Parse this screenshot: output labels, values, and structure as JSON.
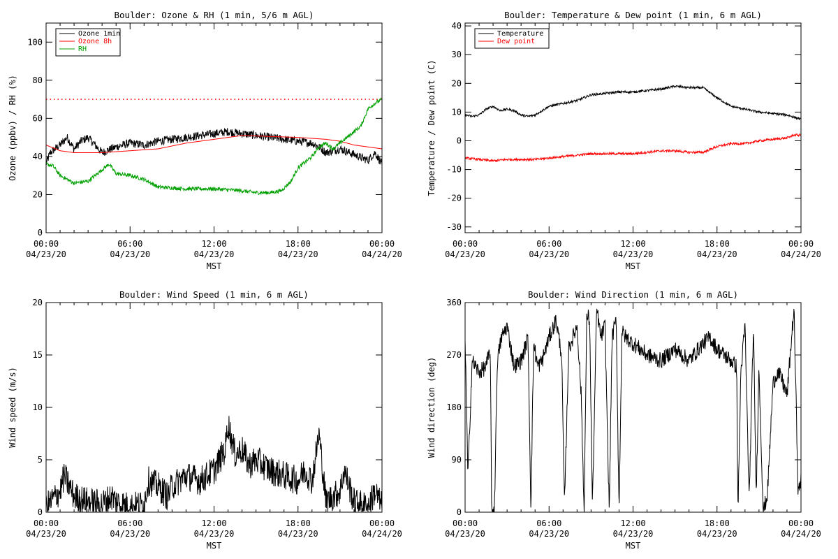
{
  "chart_data": [
    {
      "type": "line",
      "title": "Boulder: Ozone & RH (1 min, 5/6 m AGL)",
      "ylabel": "Ozone (ppbv) / RH (%)",
      "xlabel": "MST",
      "ylim": [
        0,
        110
      ],
      "yticks": [
        0,
        20,
        40,
        60,
        80,
        100
      ],
      "xticks": [
        [
          "00:00",
          "04/23/20"
        ],
        [
          "06:00",
          "04/23/20"
        ],
        [
          "12:00",
          "04/23/20"
        ],
        [
          "18:00",
          "04/23/20"
        ],
        [
          "00:00",
          "04/24/20"
        ]
      ],
      "xrange_hours": [
        0,
        24
      ],
      "legend": "top-left",
      "reference_line": {
        "y": 70,
        "color": "#ff0000",
        "style": "dotted"
      },
      "series": [
        {
          "name": "Ozone 1min",
          "color": "#000000",
          "noise": 2.2,
          "x": [
            0,
            0.3,
            1,
            1.5,
            2,
            2.5,
            3,
            3.5,
            4,
            5,
            6,
            7,
            8,
            9,
            10,
            11,
            12,
            13,
            14,
            15,
            16,
            17,
            18,
            19,
            19.5,
            20,
            21,
            22,
            23,
            23.5,
            24
          ],
          "y": [
            36,
            42,
            46,
            50,
            44,
            48,
            50,
            46,
            42,
            45,
            47,
            46,
            48,
            49,
            50,
            51,
            52,
            53,
            52,
            51,
            50,
            49,
            48,
            47,
            45,
            42,
            44,
            41,
            38,
            42,
            36
          ]
        },
        {
          "name": "Ozone 8h",
          "color": "#ff0000",
          "noise": 0,
          "x": [
            0,
            1,
            2,
            3,
            4,
            6,
            8,
            10,
            12,
            14,
            16,
            18,
            19,
            20,
            21,
            22,
            23,
            24
          ],
          "y": [
            46,
            43,
            42,
            42,
            42,
            43,
            44,
            47,
            49,
            51,
            50.5,
            50,
            49.5,
            49,
            48,
            46,
            45,
            44
          ]
        },
        {
          "name": "RH",
          "color": "#00a000",
          "noise": 1.0,
          "x": [
            0,
            0.5,
            1,
            1.5,
            2,
            3,
            4,
            4.5,
            5,
            6,
            7,
            8,
            10,
            12,
            14,
            15,
            16,
            16.8,
            17.5,
            18,
            19,
            19.5,
            20,
            20.5,
            21,
            21.5,
            22,
            22.5,
            23,
            23.5,
            24
          ],
          "y": [
            36,
            35,
            30,
            28,
            26,
            27,
            33,
            36,
            31,
            30,
            28,
            24,
            23,
            23,
            22,
            21,
            21,
            22,
            27,
            34,
            40,
            45,
            47,
            44,
            47,
            50,
            53,
            56,
            65,
            68,
            70
          ]
        }
      ]
    },
    {
      "type": "line",
      "title": "Boulder: Temperature & Dew point (1 min, 6 m AGL)",
      "ylabel": "Temperature / Dew point (C)",
      "xlabel": "MST",
      "ylim": [
        -32,
        41
      ],
      "yticks": [
        -30,
        -20,
        -10,
        0,
        10,
        20,
        30,
        40
      ],
      "xticks": [
        [
          "00:00",
          "04/23/20"
        ],
        [
          "06:00",
          "04/23/20"
        ],
        [
          "12:00",
          "04/23/20"
        ],
        [
          "18:00",
          "04/23/20"
        ],
        [
          "00:00",
          "04/24/20"
        ]
      ],
      "xrange_hours": [
        0,
        24
      ],
      "legend": "top-left",
      "series": [
        {
          "name": "Temperature",
          "color": "#000000",
          "noise": 0.4,
          "x": [
            0,
            0.5,
            1,
            1.5,
            2,
            2.5,
            3,
            3.5,
            4,
            4.5,
            5,
            5.5,
            6,
            6.5,
            7,
            8,
            9,
            10,
            11,
            12,
            13,
            14,
            15,
            16,
            17,
            18,
            19,
            20,
            21,
            22,
            23,
            24
          ],
          "y": [
            9,
            8.5,
            9,
            11,
            12,
            10.5,
            11,
            10.5,
            9,
            8.5,
            9,
            10.5,
            12,
            12.5,
            13,
            14,
            16,
            16.5,
            17,
            17,
            17.5,
            18,
            19,
            18.5,
            18.5,
            15,
            12,
            11,
            10,
            9.5,
            9,
            7.5
          ]
        },
        {
          "name": "Dew point",
          "color": "#ff0000",
          "noise": 0.4,
          "x": [
            0,
            1,
            2,
            3,
            4,
            5,
            6,
            7,
            8,
            9,
            10,
            11,
            12,
            13,
            14,
            15,
            16,
            17,
            18,
            19,
            20,
            21,
            22,
            23,
            23.5,
            24
          ],
          "y": [
            -6,
            -6.5,
            -7,
            -6.5,
            -6.5,
            -6.5,
            -6,
            -5.5,
            -5,
            -4.5,
            -4.5,
            -4.5,
            -4.5,
            -4,
            -3.5,
            -3.5,
            -4,
            -4,
            -2,
            -1,
            -1,
            0,
            0.5,
            1,
            2,
            2
          ]
        }
      ]
    },
    {
      "type": "line",
      "title": "Boulder: Wind Speed (1 min, 6 m AGL)",
      "ylabel": "Wind speed (m/s)",
      "xlabel": "MST",
      "ylim": [
        0,
        20
      ],
      "yticks": [
        0,
        5,
        10,
        15,
        20
      ],
      "xticks": [
        [
          "00:00",
          "04/23/20"
        ],
        [
          "06:00",
          "04/23/20"
        ],
        [
          "12:00",
          "04/23/20"
        ],
        [
          "18:00",
          "04/23/20"
        ],
        [
          "00:00",
          "04/24/20"
        ]
      ],
      "xrange_hours": [
        0,
        24
      ],
      "legend": "none",
      "series": [
        {
          "name": "",
          "color": "#000000",
          "noise": 1.4,
          "x": [
            0,
            1,
            1.3,
            2,
            3,
            4,
            4.7,
            5,
            6,
            7,
            7.3,
            8,
            8.7,
            9,
            10,
            11,
            12,
            12.8,
            13,
            13.5,
            14,
            14.5,
            15,
            16,
            17,
            18,
            18.5,
            19,
            19.5,
            20,
            21,
            21.3,
            22,
            23,
            23.5,
            24
          ],
          "y": [
            0.5,
            2,
            3.5,
            1.5,
            1,
            0.8,
            1.5,
            1,
            0.5,
            0.8,
            3,
            2.5,
            1.5,
            2.5,
            3.5,
            3,
            4,
            6,
            8.5,
            5.5,
            6,
            4.5,
            5,
            4,
            3.5,
            3,
            4,
            3,
            7.5,
            1,
            2,
            4,
            1,
            0.5,
            2,
            0.5
          ]
        }
      ]
    },
    {
      "type": "line",
      "title": "Boulder: Wind Direction (1 min, 6 m AGL)",
      "ylabel": "Wind direction (deg)",
      "xlabel": "MST",
      "ylim": [
        0,
        360
      ],
      "yticks": [
        0,
        90,
        180,
        270,
        360
      ],
      "xticks": [
        [
          "00:00",
          "04/23/20"
        ],
        [
          "06:00",
          "04/23/20"
        ],
        [
          "12:00",
          "04/23/20"
        ],
        [
          "18:00",
          "04/23/20"
        ],
        [
          "00:00",
          "04/24/20"
        ]
      ],
      "xrange_hours": [
        0,
        24
      ],
      "legend": "none",
      "series": [
        {
          "name": "",
          "color": "#000000",
          "noise": 14,
          "x": [
            0,
            0.2,
            0.5,
            1,
            1.5,
            1.8,
            1.9,
            2.1,
            2.3,
            2.6,
            3,
            3.5,
            4,
            4.5,
            4.7,
            4.9,
            5.2,
            5.5,
            6,
            6.5,
            6.9,
            7.1,
            7.4,
            7.7,
            8,
            8.3,
            8.5,
            8.7,
            8.9,
            9.1,
            9.4,
            9.7,
            10,
            10.3,
            10.5,
            10.8,
            11,
            11.2,
            11.5,
            12,
            13,
            14,
            15,
            16,
            17,
            17.5,
            18,
            19,
            19.4,
            19.5,
            19.7,
            20,
            20.3,
            20.6,
            20.8,
            21,
            21.3,
            21.6,
            22,
            22.3,
            22.6,
            23,
            23.5,
            23.8,
            24
          ],
          "y": [
            300,
            60,
            260,
            240,
            250,
            280,
            0,
            10,
            260,
            300,
            320,
            250,
            260,
            300,
            10,
            290,
            250,
            260,
            300,
            330,
            270,
            10,
            280,
            300,
            320,
            200,
            0,
            340,
            330,
            10,
            350,
            300,
            320,
            0,
            300,
            330,
            0,
            310,
            300,
            290,
            270,
            260,
            280,
            260,
            290,
            300,
            280,
            260,
            250,
            0,
            240,
            320,
            20,
            320,
            30,
            250,
            0,
            30,
            220,
            240,
            230,
            200,
            350,
            30,
            60
          ]
        }
      ]
    }
  ]
}
